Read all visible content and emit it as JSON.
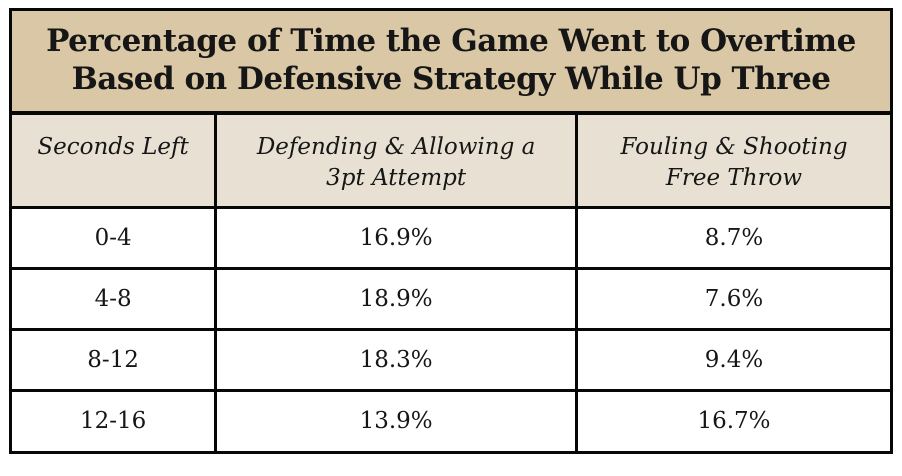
{
  "title": {
    "full": "Percentage of Time the Game Went to Overtime Based on Defensive Strategy While Up Three",
    "line1": "Percentage of Time the Game Went to Overtime",
    "line2": "Based on Defensive Strategy While Up Three"
  },
  "colors": {
    "title_bg": "#d9c7a5",
    "header_bg": "#e8e1d3",
    "row_bg": "#ffffff",
    "border": "#070707",
    "text": "#161616"
  },
  "table": {
    "columns": [
      {
        "line1": "Seconds Left",
        "line2": ""
      },
      {
        "line1": "Defending & Allowing a",
        "line2": "3pt Attempt"
      },
      {
        "line1": "Fouling & Shooting",
        "line2": "Free Throw"
      }
    ],
    "rows": [
      [
        "0-4",
        "16.9%",
        "8.7%"
      ],
      [
        "4-8",
        "18.9%",
        "7.6%"
      ],
      [
        "8-12",
        "18.3%",
        "9.4%"
      ],
      [
        "12-16",
        "13.9%",
        "16.7%"
      ]
    ]
  },
  "chart_data": {
    "type": "table",
    "title": "Percentage of Time the Game Went to Overtime Based on Defensive Strategy While Up Three",
    "columns": [
      "Seconds Left",
      "Defending & Allowing a 3pt Attempt",
      "Fouling & Shooting Free Throw"
    ],
    "categories": [
      "0-4",
      "4-8",
      "8-12",
      "12-16"
    ],
    "series": [
      {
        "name": "Defending & Allowing a 3pt Attempt",
        "values": [
          16.9,
          18.9,
          18.3,
          13.9
        ]
      },
      {
        "name": "Fouling & Shooting Free Throw",
        "values": [
          8.7,
          7.6,
          9.4,
          16.7
        ]
      }
    ],
    "unit": "%"
  }
}
